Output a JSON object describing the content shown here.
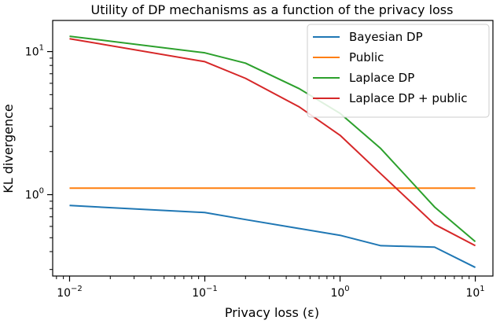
{
  "chart_data": {
    "type": "line",
    "title": "Utility of DP mechanisms as a function of the privacy loss",
    "xlabel": "Privacy loss (ε)",
    "ylabel": "KL divergence",
    "xscale": "log",
    "yscale": "log",
    "xlim": [
      0.0075,
      13.5
    ],
    "ylim": [
      0.27,
      16.5
    ],
    "grid": false,
    "legend_position": "top-right",
    "xticks": [
      {
        "value": 0.01,
        "base": "10",
        "exp": "−2"
      },
      {
        "value": 0.1,
        "base": "10",
        "exp": "−1"
      },
      {
        "value": 1,
        "base": "10",
        "exp": "0"
      },
      {
        "value": 10,
        "base": "10",
        "exp": "1"
      }
    ],
    "yticks": [
      {
        "value": 1,
        "base": "10",
        "exp": "0"
      },
      {
        "value": 10,
        "base": "10",
        "exp": "1"
      }
    ],
    "series": [
      {
        "name": "Bayesian DP",
        "color": "#1f77b4",
        "x": [
          0.01,
          0.1,
          0.2,
          0.5,
          1,
          2,
          5,
          10
        ],
        "y": [
          0.84,
          0.75,
          0.67,
          0.58,
          0.52,
          0.44,
          0.43,
          0.31
        ]
      },
      {
        "name": "Public",
        "color": "#ff7f0e",
        "x": [
          0.01,
          10
        ],
        "y": [
          1.11,
          1.11
        ]
      },
      {
        "name": "Laplace DP",
        "color": "#2ca02c",
        "x": [
          0.01,
          0.1,
          0.2,
          0.5,
          1,
          2,
          5,
          10
        ],
        "y": [
          12.8,
          9.8,
          8.3,
          5.5,
          3.7,
          2.1,
          0.82,
          0.47
        ]
      },
      {
        "name": "Laplace DP + public",
        "color": "#d62728",
        "x": [
          0.01,
          0.1,
          0.2,
          0.5,
          1,
          2,
          5,
          10
        ],
        "y": [
          12.3,
          8.5,
          6.5,
          4.1,
          2.6,
          1.4,
          0.62,
          0.44
        ]
      }
    ]
  }
}
